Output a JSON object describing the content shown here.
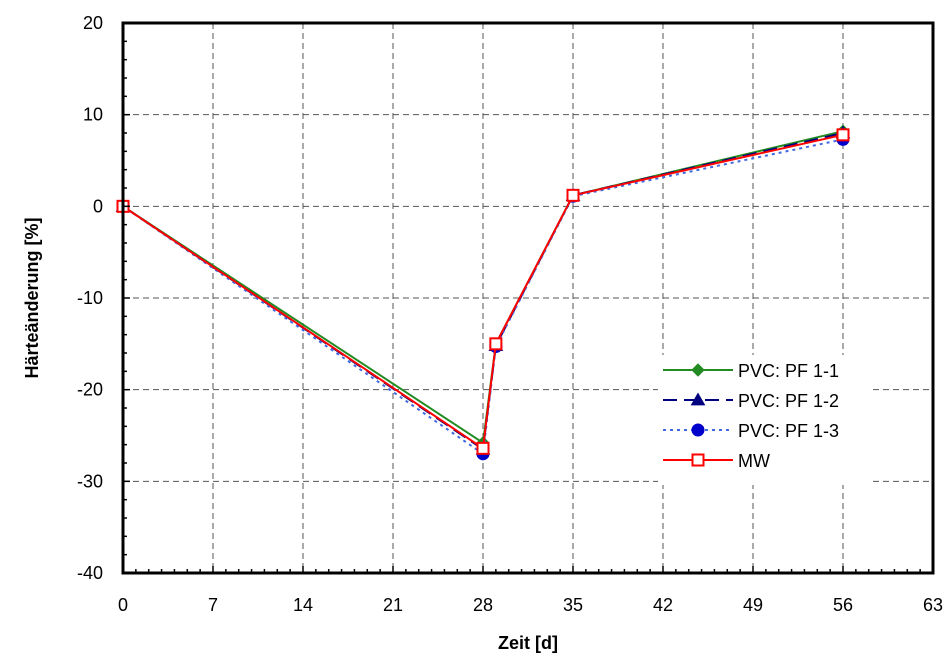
{
  "chart_data": {
    "type": "line",
    "xlabel": "Zeit [d]",
    "ylabel": "Härteänderung [%]",
    "xlim": [
      0,
      63
    ],
    "ylim": [
      -40,
      20
    ],
    "xticks": [
      0,
      7,
      14,
      21,
      28,
      35,
      42,
      49,
      56,
      63
    ],
    "yticks": [
      -40,
      -30,
      -20,
      -10,
      0,
      10,
      20
    ],
    "grid": true,
    "legend_position": "right-center",
    "series": [
      {
        "name": "PVC: PF 1-1",
        "color": "#228B22",
        "line_style": "solid",
        "marker": "diamond",
        "x": [
          0,
          28,
          29,
          35,
          56
        ],
        "y": [
          0,
          -25.8,
          -15.0,
          1.2,
          8.2
        ]
      },
      {
        "name": "PVC: PF 1-2",
        "color": "#000080",
        "line_style": "dashed",
        "marker": "triangle",
        "x": [
          0,
          28,
          29,
          35,
          56
        ],
        "y": [
          0,
          -26.5,
          -15.2,
          1.2,
          8.0
        ]
      },
      {
        "name": "PVC: PF 1-3",
        "color": "#4169E1",
        "line_style": "dotted",
        "marker": "circle",
        "x": [
          0,
          28,
          29,
          35,
          56
        ],
        "y": [
          0,
          -27.0,
          -15.3,
          1.1,
          7.3
        ]
      },
      {
        "name": "MW",
        "color": "#FF0000",
        "line_style": "solid",
        "marker": "square-open",
        "x": [
          0,
          28,
          29,
          35,
          56
        ],
        "y": [
          0,
          -26.4,
          -15.0,
          1.2,
          7.8
        ]
      }
    ]
  }
}
